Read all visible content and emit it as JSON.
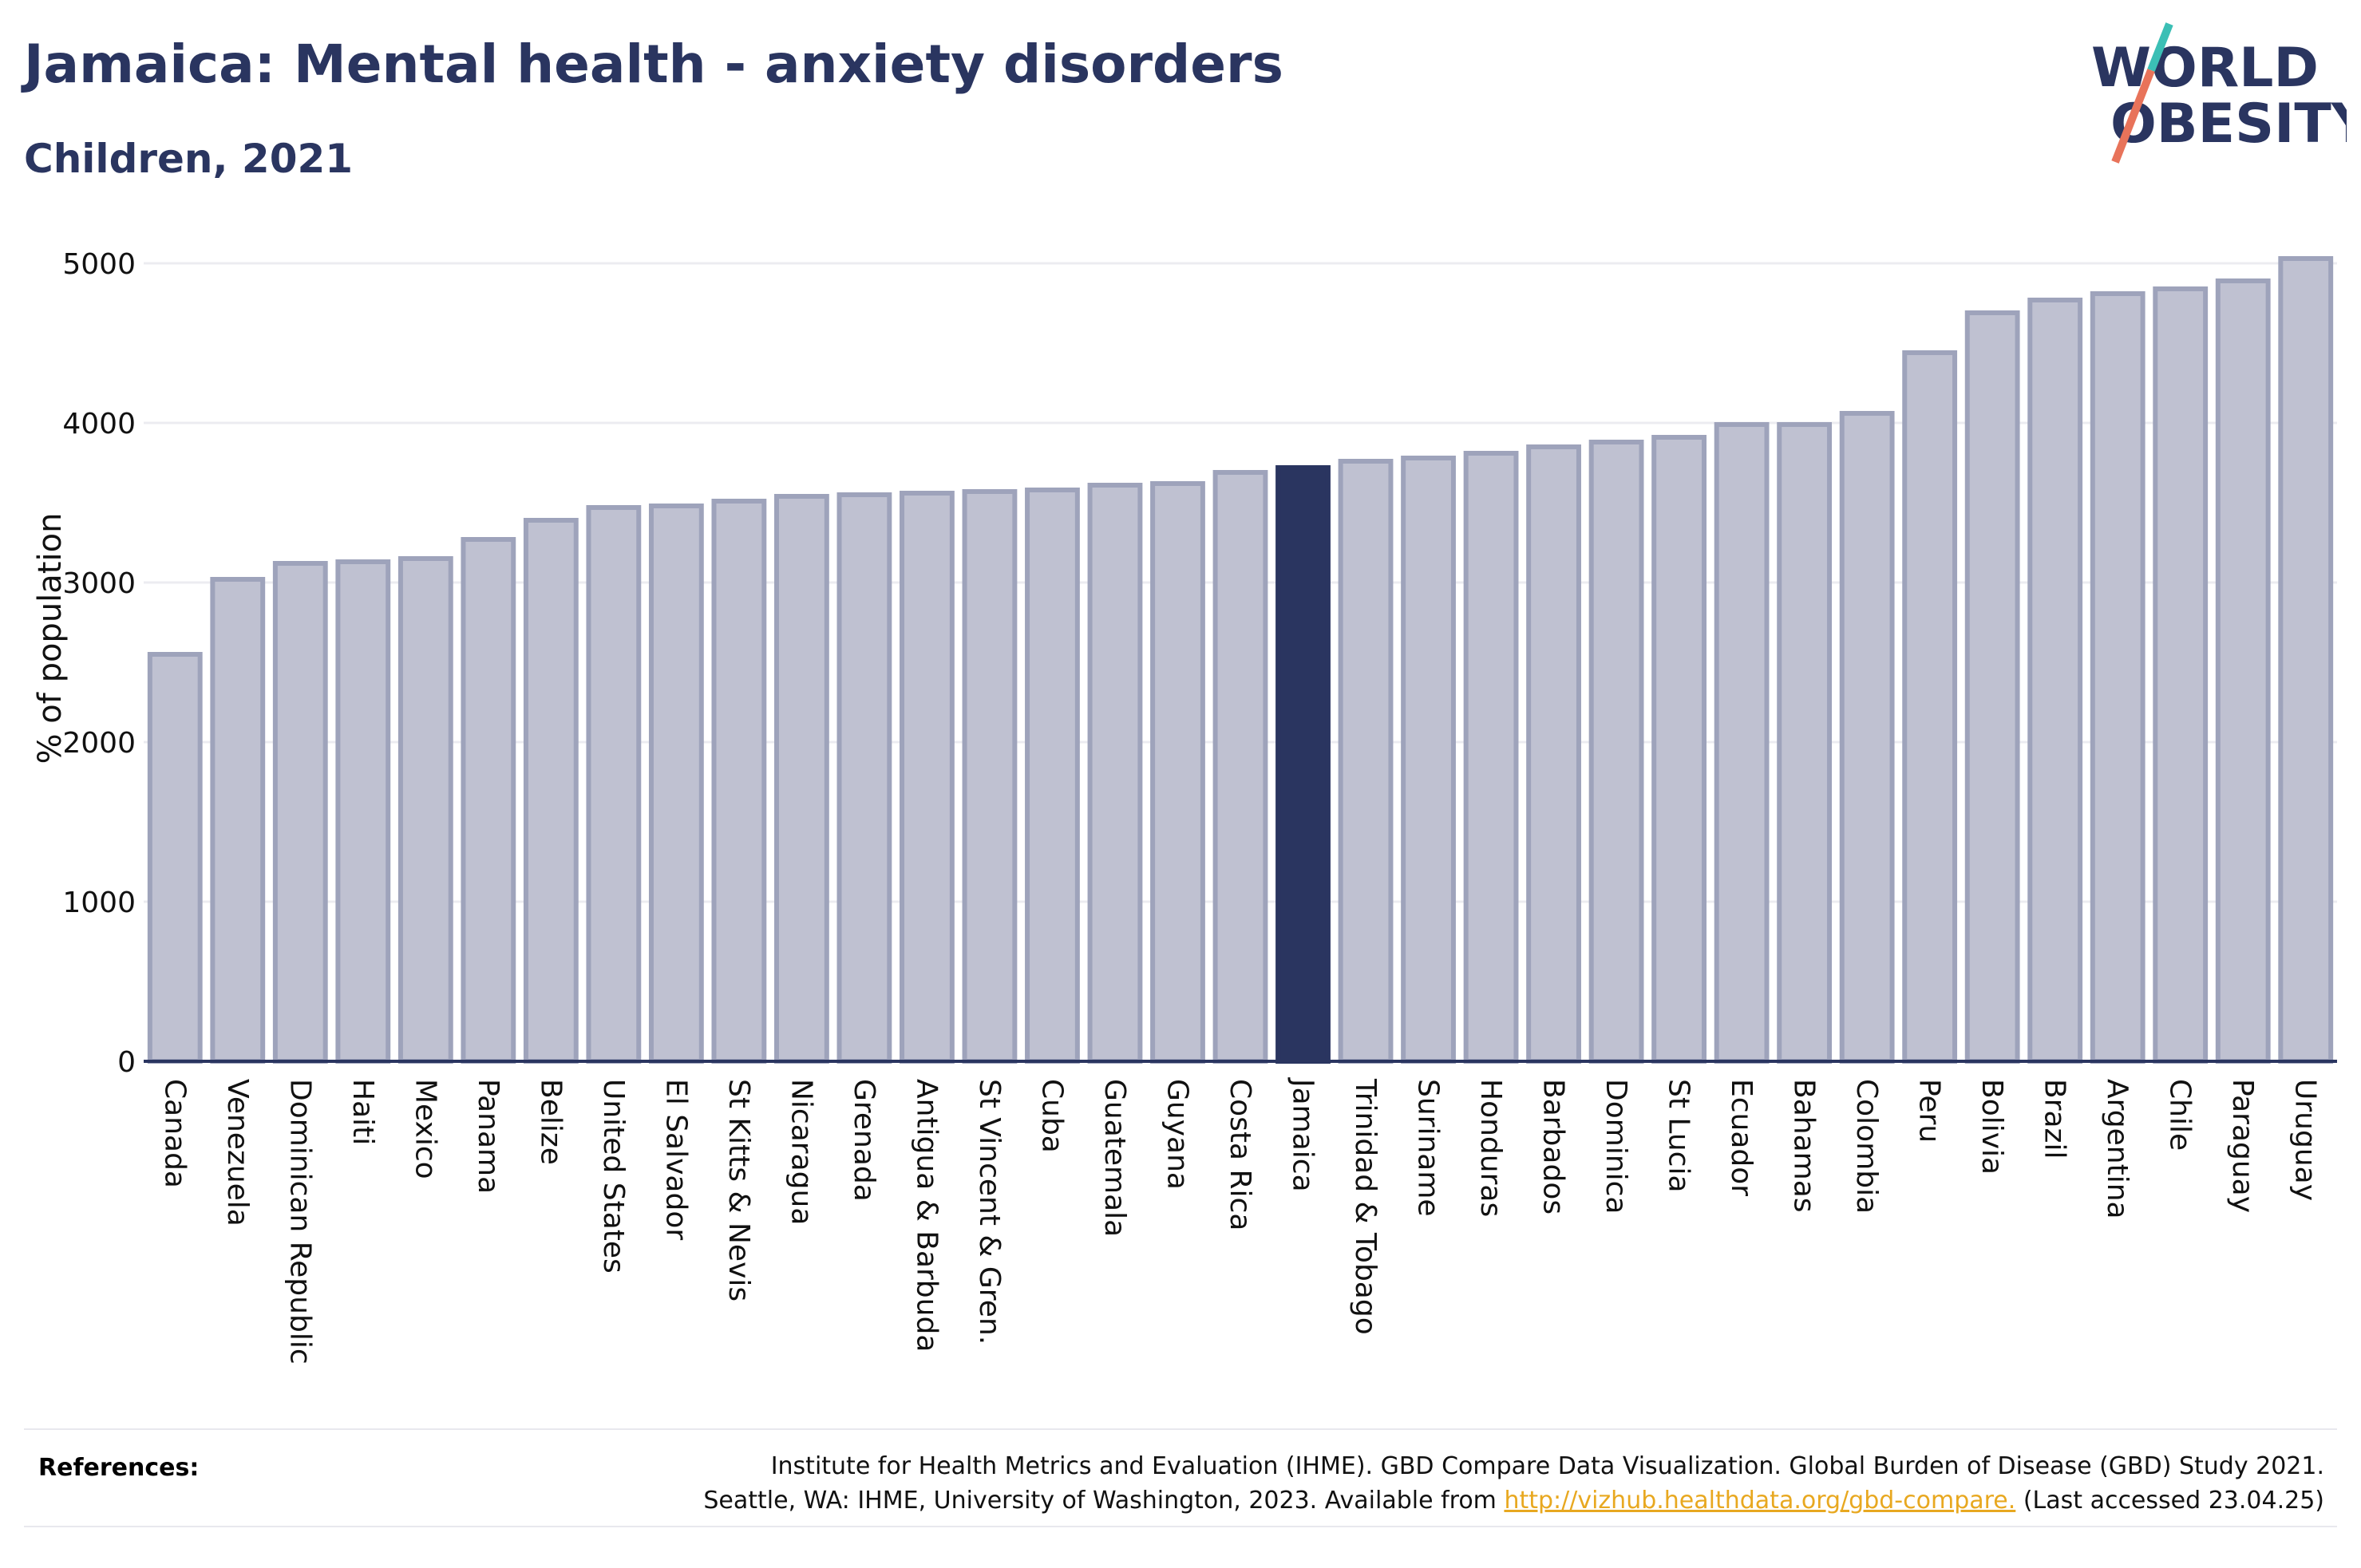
{
  "header": {
    "title": "Jamaica: Mental health - anxiety disorders",
    "subtitle": "Children, 2021"
  },
  "logo": {
    "line1": "WORLD",
    "line2": "OBESITY",
    "accent_teal": "#3bbfb5",
    "accent_coral": "#e8735a"
  },
  "colors": {
    "bar": "#bfc1d1",
    "bar_stroke": "#9ea3bb",
    "highlight": "#2a3560",
    "axis": "#2a3560",
    "grid": "#ececf1"
  },
  "chart_data": {
    "type": "bar",
    "title": "Jamaica: Mental health - anxiety disorders",
    "subtitle": "Children, 2021",
    "xlabel": "",
    "ylabel": "% of population",
    "ylim": [
      0,
      5000
    ],
    "yticks": [
      0,
      1000,
      2000,
      3000,
      4000,
      5000
    ],
    "grid": true,
    "highlight": "Jamaica",
    "categories": [
      "Canada",
      "Venezuela",
      "Dominican Republic",
      "Haiti",
      "Mexico",
      "Panama",
      "Belize",
      "United States",
      "El Salvador",
      "St Kitts & Nevis",
      "Nicaragua",
      "Grenada",
      "Antigua & Barbuda",
      "St Vincent & Gren.",
      "Cuba",
      "Guatemala",
      "Guyana",
      "Costa Rica",
      "Jamaica",
      "Trinidad & Tobago",
      "Suriname",
      "Honduras",
      "Barbados",
      "Dominica",
      "St Lucia",
      "Ecuador",
      "Bahamas",
      "Colombia",
      "Peru",
      "Bolivia",
      "Brazil",
      "Argentina",
      "Chile",
      "Paraguay",
      "Uruguay"
    ],
    "values": [
      2550,
      3020,
      3120,
      3130,
      3150,
      3270,
      3390,
      3470,
      3480,
      3510,
      3540,
      3550,
      3560,
      3570,
      3580,
      3610,
      3620,
      3690,
      3720,
      3760,
      3780,
      3810,
      3850,
      3880,
      3910,
      3990,
      3990,
      4060,
      4440,
      4690,
      4770,
      4810,
      4840,
      4890,
      5030
    ]
  },
  "references": {
    "label": "References:",
    "line1": "Institute for Health Metrics and Evaluation (IHME). GBD Compare Data Visualization. Global Burden of Disease (GBD) Study 2021.",
    "line2_prefix": "Seattle, WA: IHME, University of Washington, 2023. Available from ",
    "link": "http://vizhub.healthdata.org/gbd-compare.",
    "line2_suffix": " (Last accessed 23.04.25)"
  }
}
